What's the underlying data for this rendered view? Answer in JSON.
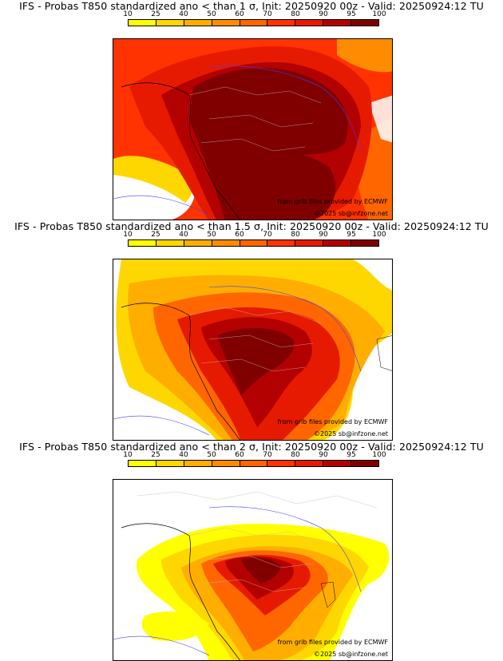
{
  "colorbar": {
    "ticks": [
      "10",
      "25",
      "40",
      "50",
      "60",
      "70",
      "80",
      "90",
      "95",
      "100"
    ],
    "colors": [
      "#ffff00",
      "#ffd700",
      "#ffae00",
      "#ff8c00",
      "#ff6600",
      "#ff3300",
      "#e61a00",
      "#b30000",
      "#800000"
    ]
  },
  "panels": [
    {
      "title": "IFS - Probas T850  standardized ano < than 1 σ, Init: 20250920 00z - Valid: 20250924:12 TU",
      "credit": "from grib files provided by ECMWF",
      "copyright": "©2025 sb@infzone.net"
    },
    {
      "title": "IFS - Probas T850  standardized ano < than 1.5 σ, Init: 20250920 00z - Valid: 20250924:12 TU",
      "credit": "from grib files provided by ECMWF",
      "copyright": "©2025 sb@infzone.net"
    },
    {
      "title": "IFS - Probas T850  standardized ano < than 2 σ, Init: 20250920 00z - Valid: 20250924:12 TU",
      "credit": "from grib files provided by ECMWF",
      "copyright": "©2025 sb@infzone.net"
    }
  ]
}
